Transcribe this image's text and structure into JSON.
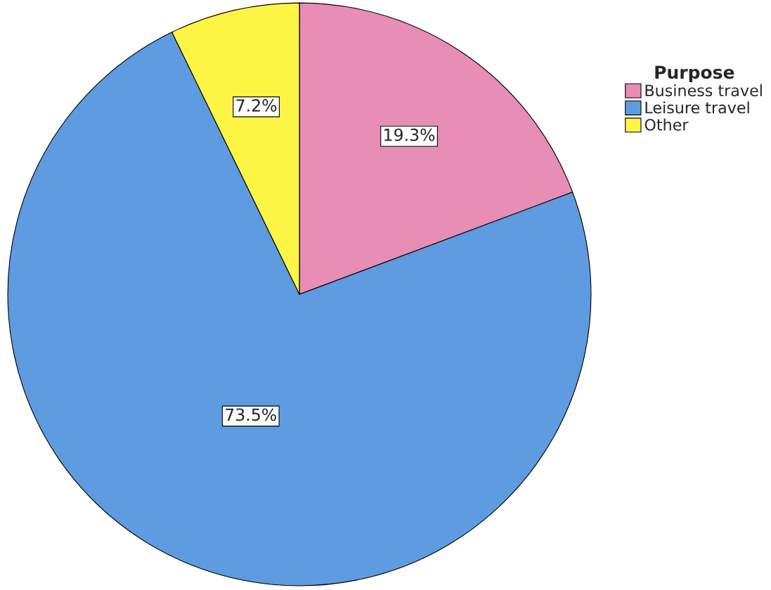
{
  "chart_data": {
    "type": "pie",
    "legend_title": "Purpose",
    "legend": "top right",
    "categories": [
      "Business travel",
      "Leisure travel",
      "Other"
    ],
    "values": [
      19.3,
      73.5,
      7.2
    ],
    "colors": [
      "#e88db5",
      "#5e9be0",
      "#fdf543"
    ],
    "value_labels": [
      "19.3%",
      "73.5%",
      "7.2%"
    ]
  }
}
